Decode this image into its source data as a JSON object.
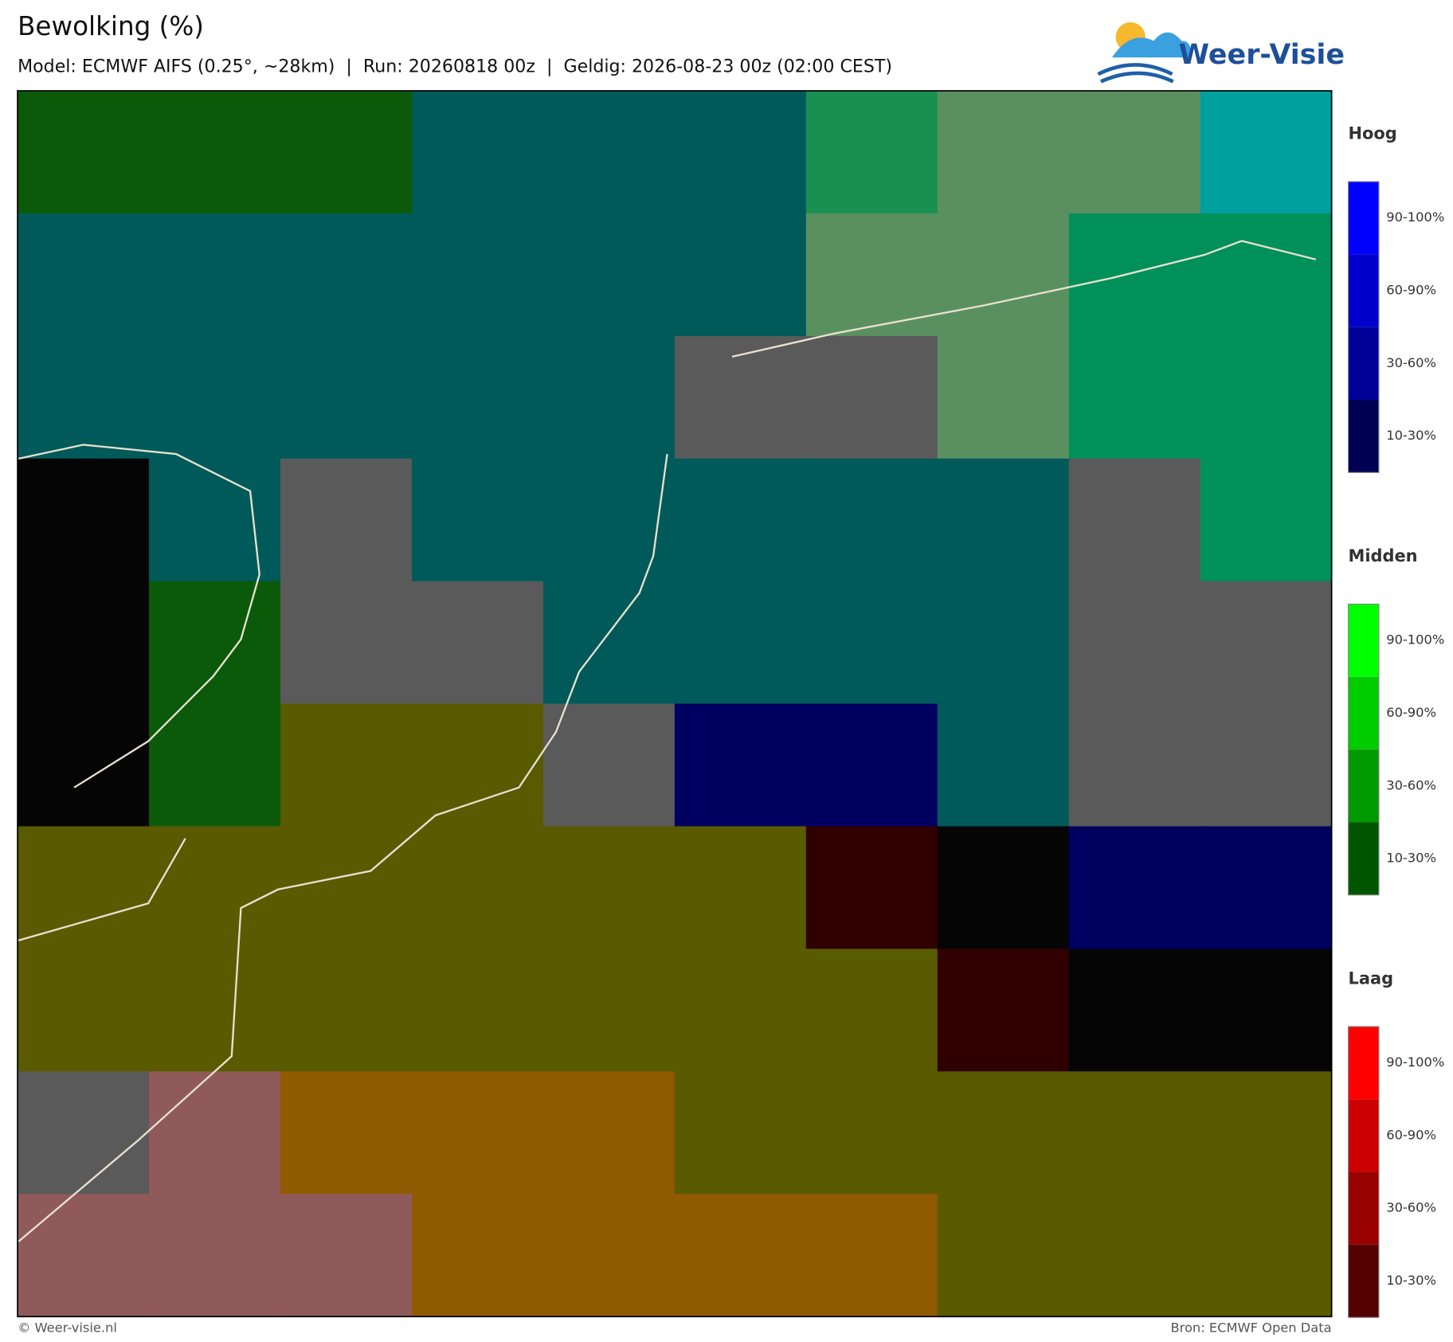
{
  "header": {
    "title": "Bewolking (%)",
    "subtitle": "Model: ECMWF AIFS (0.25°, ~28km)  |  Run: 20260818 00z  |  Geldig: 2026-08-23 00z (02:00 CEST)",
    "logo": "Weer-Visie"
  },
  "legend": [
    {
      "title": "Hoog",
      "items": [
        {
          "label": "90-100%",
          "color": "#0000ff"
        },
        {
          "label": "60-90%",
          "color": "#0000cc"
        },
        {
          "label": "30-60%",
          "color": "#000099"
        },
        {
          "label": "10-30%",
          "color": "#000055"
        }
      ]
    },
    {
      "title": "Midden",
      "items": [
        {
          "label": "90-100%",
          "color": "#00ff00"
        },
        {
          "label": "60-90%",
          "color": "#00cc00"
        },
        {
          "label": "30-60%",
          "color": "#009900"
        },
        {
          "label": "10-30%",
          "color": "#005500"
        }
      ]
    },
    {
      "title": "Laag",
      "items": [
        {
          "label": "90-100%",
          "color": "#ff0000"
        },
        {
          "label": "60-90%",
          "color": "#cc0000"
        },
        {
          "label": "30-60%",
          "color": "#990000"
        },
        {
          "label": "10-30%",
          "color": "#550000"
        }
      ]
    }
  ],
  "footer": {
    "copyright": "© Weer-visie.nl",
    "source": "Bron: ECMWF Open Data"
  }
}
